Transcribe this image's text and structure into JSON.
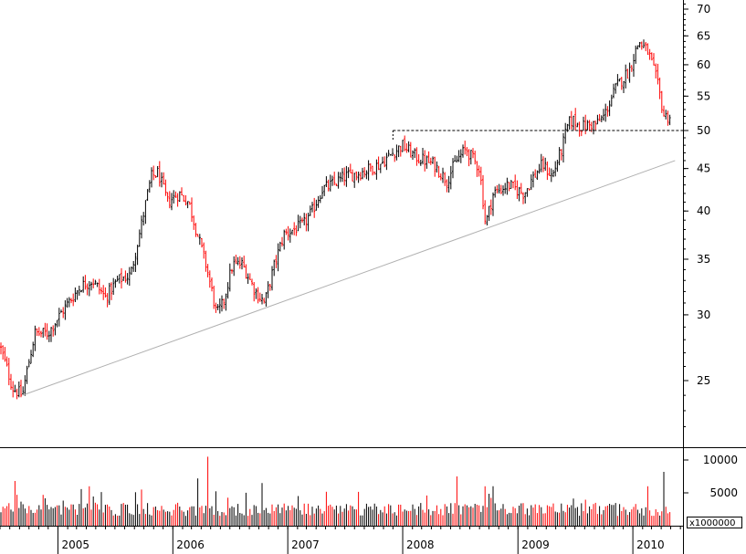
{
  "chart_data": [
    {
      "type": "ohlc-bar",
      "scale": "log",
      "ylim": [
        21,
        72
      ],
      "y_ticks": [
        25,
        30,
        35,
        40,
        45,
        50,
        55,
        60,
        65,
        70
      ],
      "x_ticks": [
        "2005",
        "2006",
        "2007",
        "2008",
        "2009",
        "2010"
      ],
      "xlim": [
        "2004-07",
        "2010-06"
      ],
      "up_color": "#000000",
      "down_color": "#ff0000",
      "close_path": [
        [
          "2004-07-01",
          27.5
        ],
        [
          "2004-08-10",
          24.5
        ],
        [
          "2004-09-10",
          24.0
        ],
        [
          "2004-10-20",
          28.5
        ],
        [
          "2004-12-01",
          28.5
        ],
        [
          "2005-01-20",
          30.5
        ],
        [
          "2005-03-15",
          32.5
        ],
        [
          "2005-04-20",
          33.0
        ],
        [
          "2005-06-01",
          31.5
        ],
        [
          "2005-07-10",
          33.0
        ],
        [
          "2005-08-20",
          33.5
        ],
        [
          "2005-09-20",
          38.0
        ],
        [
          "2005-10-25",
          44.0
        ],
        [
          "2005-11-15",
          44.5
        ],
        [
          "2005-12-15",
          41.0
        ],
        [
          "2006-01-20",
          42.0
        ],
        [
          "2006-02-20",
          41.0
        ],
        [
          "2006-03-20",
          37.5
        ],
        [
          "2006-04-20",
          34.0
        ],
        [
          "2006-05-20",
          30.0
        ],
        [
          "2006-06-10",
          31.0
        ],
        [
          "2006-07-10",
          34.5
        ],
        [
          "2006-08-10",
          34.5
        ],
        [
          "2006-09-20",
          32.0
        ],
        [
          "2006-10-20",
          31.0
        ],
        [
          "2006-11-20",
          34.5
        ],
        [
          "2006-12-20",
          37.5
        ],
        [
          "2007-01-20",
          38.0
        ],
        [
          "2007-02-20",
          38.5
        ],
        [
          "2007-03-20",
          40.0
        ],
        [
          "2007-04-20",
          42.5
        ],
        [
          "2007-05-20",
          43.0
        ],
        [
          "2007-07-01",
          44.0
        ],
        [
          "2007-08-20",
          44.5
        ],
        [
          "2007-10-20",
          45.5
        ],
        [
          "2007-12-01",
          47.0
        ],
        [
          "2007-12-31",
          48.0
        ],
        [
          "2008-02-10",
          46.5
        ],
        [
          "2008-04-10",
          45.5
        ],
        [
          "2008-05-20",
          43.5
        ],
        [
          "2008-06-20",
          46.0
        ],
        [
          "2008-07-20",
          47.5
        ],
        [
          "2008-09-01",
          45.0
        ],
        [
          "2008-09-20",
          38.5
        ],
        [
          "2008-10-15",
          42.0
        ],
        [
          "2008-12-01",
          43.0
        ],
        [
          "2009-01-20",
          42.0
        ],
        [
          "2009-02-20",
          44.0
        ],
        [
          "2009-03-20",
          45.5
        ],
        [
          "2009-04-20",
          44.0
        ],
        [
          "2009-05-20",
          47.5
        ],
        [
          "2009-06-10",
          51.0
        ],
        [
          "2009-06-25",
          51.5
        ],
        [
          "2009-07-20",
          50.5
        ],
        [
          "2009-09-10",
          51.0
        ],
        [
          "2009-10-01",
          52.0
        ],
        [
          "2009-11-10",
          56.5
        ],
        [
          "2009-12-20",
          59.0
        ],
        [
          "2010-01-20",
          64.0
        ],
        [
          "2010-02-20",
          62.0
        ],
        [
          "2010-03-20",
          57.0
        ],
        [
          "2010-04-10",
          52.0
        ],
        [
          "2010-04-30",
          52.0
        ]
      ],
      "annotations": {
        "resistance_level": 50,
        "resistance_start": "2007-12-01",
        "trendline": [
          [
            "2004-09-10",
            24.0
          ],
          [
            "2010-05-15",
            46.0
          ]
        ]
      }
    },
    {
      "type": "volume-bar",
      "y_ticks": [
        5000,
        10000
      ],
      "unit_label": "x1000000",
      "ylim": [
        0,
        11000
      ],
      "spikes": [
        [
          "2004-08-20",
          6800
        ],
        [
          "2005-04-10",
          6000
        ],
        [
          "2005-09-25",
          5500
        ],
        [
          "2006-04-20",
          10500
        ],
        [
          "2006-03-20",
          7200
        ],
        [
          "2006-10-10",
          6500
        ],
        [
          "2008-06-20",
          7500
        ],
        [
          "2008-09-20",
          6000
        ],
        [
          "2008-10-15",
          6000
        ],
        [
          "2010-02-20",
          6000
        ],
        [
          "2010-04-10",
          8200
        ]
      ]
    }
  ]
}
